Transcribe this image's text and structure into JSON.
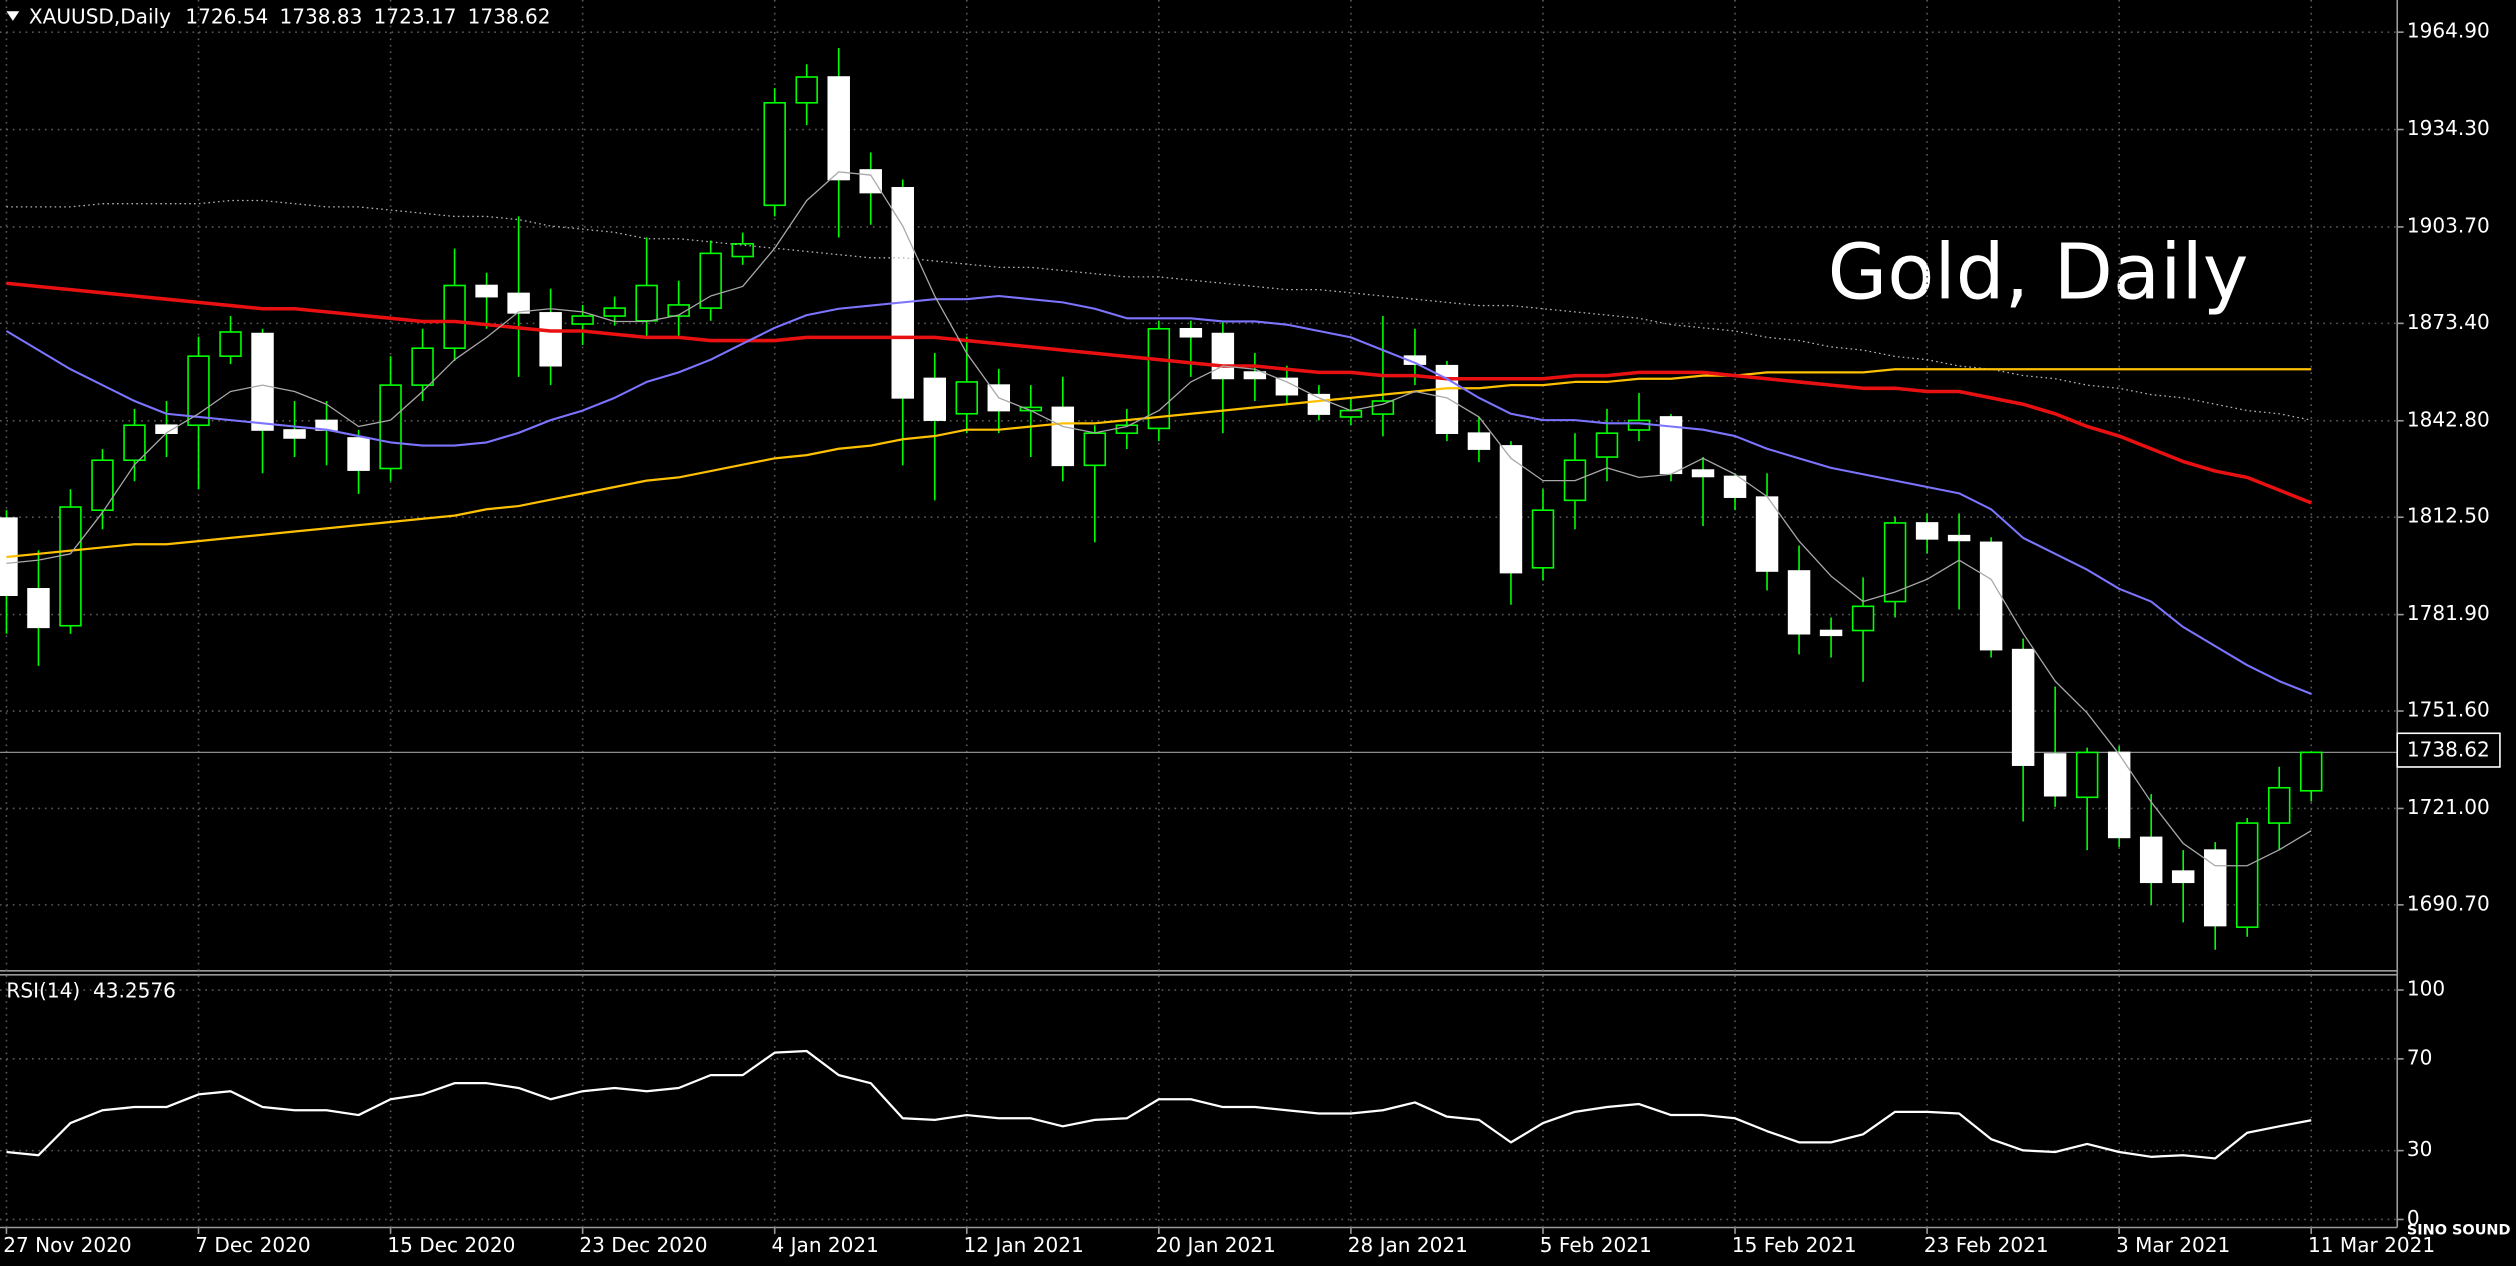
{
  "chart_data": [
    {
      "type": "candlestick",
      "title": "XAUUSD,Daily",
      "watermark": "Gold, Daily",
      "categories": [
        "27 Nov 2020",
        null,
        null,
        null,
        null,
        null,
        "7 Dec 2020",
        null,
        null,
        null,
        null,
        null,
        "15 Dec 2020",
        null,
        null,
        null,
        null,
        null,
        "23 Dec 2020",
        null,
        null,
        null,
        null,
        null,
        "4 Jan 2021",
        null,
        null,
        null,
        null,
        null,
        "12 Jan 2021",
        null,
        null,
        null,
        null,
        null,
        "20 Jan 2021",
        null,
        null,
        null,
        null,
        null,
        "28 Jan 2021",
        null,
        null,
        null,
        null,
        null,
        "5 Feb 2021",
        null,
        null,
        null,
        null,
        null,
        "15 Feb 2021",
        null,
        null,
        null,
        null,
        null,
        "23 Feb 2021",
        null,
        null,
        null,
        null,
        null,
        "3 Mar 2021",
        null,
        null,
        null,
        null,
        null,
        "11 Mar 2021"
      ],
      "open": [
        1812.2,
        1790.0,
        1778.4,
        1814.7,
        1830.4,
        1841.4,
        1841.4,
        1863.1,
        1870.2,
        1839.9,
        1842.9,
        1837.4,
        1827.8,
        1854.0,
        1865.6,
        1885.3,
        1882.8,
        1876.7,
        1873.2,
        1875.7,
        1874.2,
        1875.7,
        1878.2,
        1894.4,
        1910.5,
        1942.7,
        1950.8,
        1921.6,
        1916.0,
        1856.1,
        1845.0,
        1854.0,
        1846.0,
        1847.0,
        1828.8,
        1838.9,
        1840.4,
        1871.7,
        1870.2,
        1858.1,
        1856.1,
        1851.0,
        1844.0,
        1844.9,
        1863.1,
        1860.1,
        1838.9,
        1834.9,
        1796.6,
        1817.8,
        1831.4,
        1839.9,
        1844.0,
        1827.3,
        1825.3,
        1818.8,
        1795.6,
        1776.9,
        1776.9,
        1786.0,
        1810.7,
        1806.7,
        1804.6,
        1770.9,
        1738.1,
        1724.5,
        1738.6,
        1711.9,
        1701.3,
        1707.9,
        1683.7,
        1716.4,
        1726.54
      ],
      "high": [
        1814.7,
        1802.1,
        1821.3,
        1833.9,
        1846.5,
        1849.0,
        1869.2,
        1875.7,
        1871.7,
        1849.0,
        1849.0,
        1839.9,
        1863.1,
        1871.7,
        1896.9,
        1889.3,
        1907.0,
        1884.3,
        1879.2,
        1881.8,
        1900.4,
        1886.8,
        1899.4,
        1901.9,
        1947.3,
        1954.8,
        1959.9,
        1927.1,
        1918.6,
        1864.1,
        1869.2,
        1859.1,
        1854.0,
        1856.6,
        1841.4,
        1846.5,
        1874.2,
        1874.2,
        1874.2,
        1864.1,
        1860.1,
        1854.0,
        1850.0,
        1875.7,
        1871.7,
        1861.6,
        1844.0,
        1836.4,
        1821.3,
        1838.9,
        1846.5,
        1851.5,
        1844.9,
        1831.4,
        1826.3,
        1826.3,
        1803.6,
        1781.0,
        1793.6,
        1812.7,
        1813.7,
        1813.7,
        1806.2,
        1774.4,
        1759.3,
        1740.1,
        1740.6,
        1725.5,
        1707.9,
        1710.4,
        1718.0,
        1734.1,
        1738.83
      ],
      "low": [
        1775.9,
        1765.8,
        1775.9,
        1808.7,
        1823.8,
        1831.4,
        1821.3,
        1860.6,
        1826.3,
        1831.4,
        1828.8,
        1819.8,
        1823.8,
        1849.0,
        1861.6,
        1871.7,
        1856.6,
        1854.0,
        1866.6,
        1872.7,
        1869.2,
        1869.2,
        1874.2,
        1891.8,
        1907.0,
        1935.7,
        1900.4,
        1904.4,
        1828.8,
        1817.8,
        1838.9,
        1838.9,
        1831.4,
        1823.8,
        1804.6,
        1833.9,
        1836.4,
        1856.6,
        1838.9,
        1849.0,
        1848.0,
        1842.9,
        1841.4,
        1837.9,
        1854.0,
        1836.4,
        1829.8,
        1785.0,
        1792.6,
        1808.7,
        1823.8,
        1836.4,
        1823.8,
        1809.7,
        1814.7,
        1789.5,
        1769.4,
        1768.4,
        1760.8,
        1781.0,
        1801.1,
        1783.5,
        1768.4,
        1716.9,
        1721.5,
        1707.9,
        1708.9,
        1690.7,
        1685.2,
        1676.6,
        1680.7,
        1707.9,
        1723.17
      ],
      "close": [
        1788.0,
        1777.9,
        1815.7,
        1830.4,
        1841.4,
        1838.9,
        1863.1,
        1870.7,
        1839.9,
        1837.4,
        1839.9,
        1827.3,
        1854.0,
        1865.6,
        1885.3,
        1881.8,
        1876.7,
        1860.1,
        1875.7,
        1878.2,
        1885.3,
        1879.2,
        1895.4,
        1898.4,
        1942.7,
        1950.8,
        1918.6,
        1914.5,
        1850.0,
        1843.0,
        1855.0,
        1846.0,
        1847.0,
        1828.8,
        1838.9,
        1841.4,
        1871.7,
        1869.2,
        1856.1,
        1856.1,
        1851.0,
        1844.9,
        1846.0,
        1849.0,
        1860.6,
        1838.9,
        1833.9,
        1795.1,
        1814.7,
        1830.4,
        1838.9,
        1842.9,
        1826.3,
        1825.3,
        1818.8,
        1795.6,
        1775.9,
        1775.4,
        1784.5,
        1810.7,
        1805.7,
        1805.2,
        1770.9,
        1734.6,
        1725.0,
        1738.6,
        1711.9,
        1697.8,
        1697.8,
        1684.2,
        1716.4,
        1727.5,
        1738.62
      ],
      "bull_color": "#00ff00",
      "bull_fill": "#000000",
      "bear_color": "#ffffff",
      "wick_color": "#00ff00",
      "lines": [
        {
          "color": "#b4b4b4",
          "width": 0.8,
          "style": "dotted",
          "values": [
            1910,
            1910,
            1910,
            1911,
            1911,
            1911,
            1911,
            1912,
            1912,
            1911,
            1910,
            1910,
            1909,
            1908,
            1907,
            1907,
            1906,
            1904,
            1903,
            1902,
            1900,
            1900,
            1899,
            1898,
            1897,
            1896,
            1895,
            1894,
            1894,
            1893,
            1892,
            1891,
            1891,
            1890,
            1889,
            1888,
            1888,
            1887,
            1886,
            1885,
            1884,
            1884,
            1883,
            1882,
            1881,
            1880,
            1879,
            1879,
            1878,
            1877,
            1876,
            1875,
            1873,
            1872,
            1871,
            1869,
            1868,
            1866,
            1865,
            1863,
            1862,
            1860,
            1859,
            1857,
            1856,
            1854,
            1853,
            1851,
            1850,
            1848,
            1846,
            1845,
            1843
          ]
        },
        {
          "color": "#ffc000",
          "width": 1.4,
          "style": "solid",
          "values": [
            1800,
            1801,
            1802,
            1803,
            1804,
            1804,
            1805,
            1806,
            1807,
            1808,
            1809,
            1810,
            1811,
            1812,
            1813,
            1815,
            1816,
            1818,
            1820,
            1822,
            1824,
            1825,
            1827,
            1829,
            1831,
            1832,
            1834,
            1835,
            1837,
            1838,
            1840,
            1840,
            1841,
            1842,
            1842,
            1843,
            1844,
            1845,
            1846,
            1847,
            1848,
            1849,
            1850,
            1851,
            1852,
            1853,
            1853,
            1854,
            1854,
            1855,
            1855,
            1856,
            1856,
            1857,
            1857,
            1858,
            1858,
            1858,
            1858,
            1859,
            1859,
            1859,
            1859,
            1859,
            1859,
            1859,
            1859,
            1859,
            1859,
            1859,
            1859,
            1859,
            1859
          ]
        },
        {
          "color": "#e81010",
          "width": 2.2,
          "style": "solid",
          "values": [
            1886,
            1885,
            1884,
            1883,
            1882,
            1881,
            1880,
            1879,
            1878,
            1878,
            1877,
            1876,
            1875,
            1874,
            1874,
            1873,
            1872,
            1871,
            1871,
            1870,
            1869,
            1869,
            1868,
            1868,
            1868,
            1869,
            1869,
            1869,
            1869,
            1869,
            1868,
            1867,
            1866,
            1865,
            1864,
            1863,
            1862,
            1861,
            1860,
            1860,
            1859,
            1858,
            1858,
            1857,
            1857,
            1856,
            1856,
            1856,
            1856,
            1857,
            1857,
            1858,
            1858,
            1858,
            1857,
            1856,
            1855,
            1854,
            1853,
            1853,
            1852,
            1852,
            1850,
            1848,
            1845,
            1841,
            1838,
            1834,
            1830,
            1827,
            1825,
            1821,
            1817
          ]
        },
        {
          "color": "#7c74ff",
          "width": 1.3,
          "style": "solid",
          "values": [
            1871,
            1865,
            1859,
            1854,
            1849,
            1845,
            1844,
            1843,
            1842,
            1841,
            1840,
            1838,
            1836,
            1835,
            1835,
            1836,
            1839,
            1843,
            1846,
            1850,
            1855,
            1858,
            1862,
            1867,
            1872,
            1876,
            1878,
            1879,
            1880,
            1881,
            1881,
            1882,
            1881,
            1880,
            1878,
            1875,
            1875,
            1875,
            1874,
            1874,
            1873,
            1871,
            1869,
            1865,
            1861,
            1856,
            1850,
            1845,
            1843,
            1843,
            1842,
            1842,
            1841,
            1840,
            1838,
            1834,
            1831,
            1828,
            1826,
            1824,
            1822,
            1820,
            1815,
            1806,
            1801,
            1796,
            1790,
            1786,
            1778,
            1772,
            1766,
            1761,
            1757
          ]
        },
        {
          "color": "#a8a8a8",
          "width": 0.8,
          "style": "solid",
          "values": [
            1798,
            1799,
            1801,
            1814,
            1829,
            1839,
            1845,
            1852,
            1854,
            1852,
            1848,
            1841,
            1843,
            1852,
            1862,
            1869,
            1877,
            1878,
            1877,
            1874,
            1874,
            1876,
            1882,
            1885,
            1897,
            1912,
            1921,
            1920,
            1904,
            1882,
            1864,
            1850,
            1846,
            1841,
            1839,
            1841,
            1846,
            1855,
            1860,
            1859,
            1855,
            1850,
            1846,
            1848,
            1852,
            1850,
            1844,
            1831,
            1824,
            1824,
            1828,
            1825,
            1826,
            1831,
            1826,
            1819,
            1805,
            1794,
            1786,
            1789,
            1793,
            1799,
            1793,
            1776,
            1761,
            1751,
            1738,
            1723,
            1710,
            1703,
            1703,
            1708,
            1714
          ]
        }
      ],
      "ylim": [
        1670,
        1975
      ],
      "yticks": [
        {
          "value": 1964.9,
          "label": "1964.90"
        },
        {
          "value": 1934.3,
          "label": "1934.30"
        },
        {
          "value": 1903.7,
          "label": "1903.70"
        },
        {
          "value": 1873.4,
          "label": "1873.40"
        },
        {
          "value": 1842.8,
          "label": "1842.80"
        },
        {
          "value": 1812.5,
          "label": "1812.50"
        },
        {
          "value": 1781.9,
          "label": "1781.90"
        },
        {
          "value": 1751.6,
          "label": "1751.60"
        },
        {
          "value": 1721.0,
          "label": "1721.00"
        },
        {
          "value": 1690.7,
          "label": "1690.70"
        }
      ],
      "grid": true
    },
    {
      "type": "line",
      "title": "RSI(14)",
      "color": "#ffffff",
      "values": [
        29.4,
        28.0,
        42.0,
        47.6,
        49.0,
        49.0,
        54.5,
        55.9,
        49.0,
        47.6,
        47.6,
        45.5,
        52.4,
        54.5,
        59.4,
        59.4,
        57.3,
        52.4,
        55.9,
        57.3,
        55.9,
        57.3,
        62.9,
        62.9,
        72.7,
        73.4,
        62.9,
        59.4,
        44.1,
        43.4,
        45.5,
        44.1,
        44.1,
        40.6,
        43.4,
        44.1,
        52.4,
        52.4,
        49.0,
        49.0,
        47.6,
        46.2,
        46.2,
        47.6,
        51.0,
        44.8,
        43.4,
        33.6,
        42.0,
        46.9,
        49.0,
        50.3,
        45.5,
        45.5,
        44.1,
        38.5,
        33.6,
        33.6,
        37.1,
        46.9,
        46.9,
        46.2,
        35.0,
        30.1,
        29.4,
        32.9,
        29.4,
        27.3,
        28.0,
        26.6,
        37.8,
        40.6,
        43.2576
      ],
      "ylim": [
        0,
        100
      ],
      "yticks": [
        100,
        70,
        30,
        0
      ],
      "grid": true
    }
  ],
  "branding": "SINO SOUND"
}
